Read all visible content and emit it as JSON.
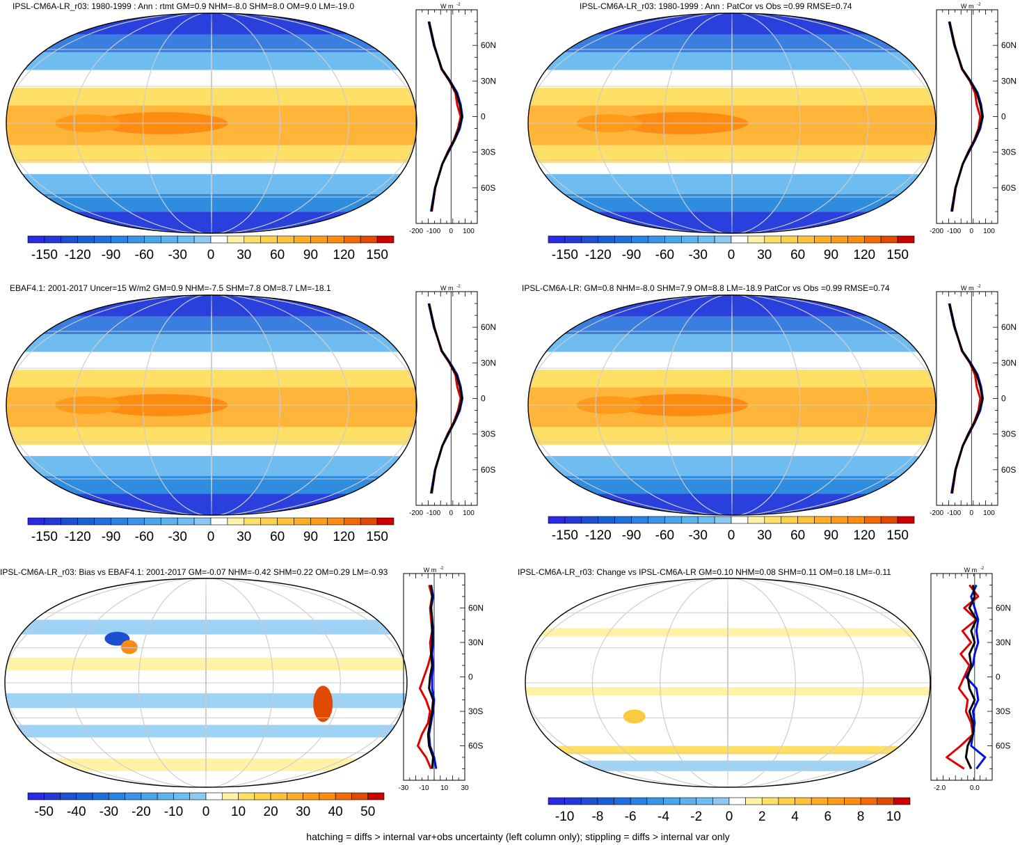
{
  "footer": "hatching = diffs > internal var+obs uncertainty (left column only); stippling = diffs > internal var only",
  "colors": {
    "warm": [
      "#fff2a6",
      "#ffe066",
      "#ffc93d",
      "#ffad26",
      "#ff8c12",
      "#f26a06",
      "#e04a03",
      "#c92a00",
      "#cc0000"
    ],
    "cool": [
      "#9fd3f5",
      "#6fbdf0",
      "#4aa6ea",
      "#2f8de0",
      "#1d6fd8",
      "#1050d0",
      "#2a2ae0"
    ]
  },
  "chart_data": [
    {
      "type": "heatmap",
      "title": "IPSL-CM6A-LR_r03: 1980-1999 : Ann : rtmt GM=0.9 NHM=-8.0 SHM=8.0 OM=9.0 LM=-19.0",
      "colorbar_ticks": [
        "-150",
        "-120",
        "-90",
        "-60",
        "-30",
        "0",
        "30",
        "60",
        "90",
        "120",
        "150"
      ],
      "colorbar_range": [
        -165,
        165
      ],
      "profile_unit": "W m",
      "profile_unit_sup": "-2",
      "profile_xticks": [
        "-200",
        "-100",
        "0",
        "100"
      ],
      "profile_xrange": [
        -200,
        150
      ],
      "profile_yticks": [
        "60N",
        "30N",
        "0",
        "30S",
        "60S"
      ],
      "profile_series": [
        {
          "color": "#e00000",
          "lat": [
            80,
            60,
            40,
            30,
            20,
            10,
            0,
            -10,
            -20,
            -30,
            -40,
            -60,
            -80
          ],
          "val": [
            -125,
            -95,
            -55,
            -10,
            25,
            35,
            55,
            40,
            15,
            -20,
            -50,
            -90,
            -110
          ]
        },
        {
          "color": "#0010e0",
          "lat": [
            80,
            60,
            40,
            30,
            20,
            10,
            0,
            -10,
            -20,
            -30,
            -40,
            -60,
            -80
          ],
          "val": [
            -128,
            -98,
            -52,
            -5,
            35,
            55,
            65,
            50,
            20,
            -15,
            -50,
            -92,
            -115
          ]
        },
        {
          "color": "#000000",
          "lat": [
            80,
            60,
            40,
            30,
            20,
            10,
            0,
            -10,
            -20,
            -30,
            -40,
            -60,
            -80
          ],
          "val": [
            -126,
            -96,
            -53,
            -8,
            30,
            50,
            62,
            45,
            18,
            -18,
            -50,
            -91,
            -112
          ]
        }
      ]
    },
    {
      "type": "heatmap",
      "title": "IPSL-CM6A-LR_r03: 1980-1999 : Ann : PatCor vs Obs =0.99 RMSE=0.74",
      "colorbar_ticks": [
        "-150",
        "-120",
        "-90",
        "-60",
        "-30",
        "0",
        "30",
        "60",
        "90",
        "120",
        "150"
      ],
      "colorbar_range": [
        -165,
        165
      ],
      "profile_unit": "W m",
      "profile_unit_sup": "-2",
      "profile_xticks": [
        "-200",
        "-100",
        "0",
        "100"
      ],
      "profile_xrange": [
        -200,
        150
      ],
      "profile_yticks": [
        "60N",
        "30N",
        "0",
        "30S",
        "60S"
      ],
      "profile_series": [
        {
          "color": "#0010e0",
          "lat": [
            80,
            60,
            40,
            30,
            20,
            10,
            0,
            -10,
            -20,
            -30,
            -40,
            -60,
            -80
          ],
          "val": [
            -128,
            -98,
            -52,
            -5,
            35,
            55,
            65,
            50,
            20,
            -15,
            -50,
            -92,
            -115
          ]
        },
        {
          "color": "#e00000",
          "lat": [
            80,
            60,
            40,
            30,
            20,
            10,
            0,
            -10,
            -20,
            -30,
            -40,
            -60,
            -80
          ],
          "val": [
            -125,
            -95,
            -55,
            -10,
            20,
            30,
            50,
            40,
            15,
            -20,
            -50,
            -90,
            -110
          ]
        },
        {
          "color": "#000000",
          "lat": [
            80,
            60,
            40,
            30,
            20,
            10,
            0,
            -10,
            -20,
            -30,
            -40,
            -60,
            -80
          ],
          "val": [
            -126,
            -96,
            -53,
            -8,
            30,
            50,
            62,
            45,
            18,
            -18,
            -50,
            -91,
            -112
          ]
        }
      ]
    },
    {
      "type": "heatmap",
      "title": "EBAF4.1: 2001-2017 Uncer=15 W/m2 GM=0.9 NHM=-7.5 SHM=7.8 OM=8.7 LM=-18.1",
      "colorbar_ticks": [
        "-150",
        "-120",
        "-90",
        "-60",
        "-30",
        "0",
        "30",
        "60",
        "90",
        "120",
        "150"
      ],
      "colorbar_range": [
        -165,
        165
      ],
      "profile_unit": "W m",
      "profile_unit_sup": "-2",
      "profile_xticks": [
        "-200",
        "-100",
        "0",
        "100"
      ],
      "profile_xrange": [
        -200,
        150
      ],
      "profile_yticks": [
        "60N",
        "30N",
        "0",
        "30S",
        "60S"
      ],
      "profile_series": [
        {
          "color": "#0010e0",
          "lat": [
            80,
            60,
            40,
            30,
            20,
            10,
            0,
            -10,
            -20,
            -30,
            -40,
            -60,
            -80
          ],
          "val": [
            -128,
            -98,
            -52,
            -5,
            35,
            55,
            65,
            50,
            20,
            -15,
            -50,
            -92,
            -115
          ]
        },
        {
          "color": "#e00000",
          "lat": [
            80,
            60,
            40,
            30,
            20,
            10,
            0,
            -10,
            -20,
            -30,
            -40,
            -60,
            -80
          ],
          "val": [
            -125,
            -95,
            -55,
            -10,
            25,
            35,
            55,
            40,
            15,
            -20,
            -50,
            -90,
            -110
          ]
        },
        {
          "color": "#000000",
          "lat": [
            80,
            60,
            40,
            30,
            20,
            10,
            0,
            -10,
            -20,
            -30,
            -40,
            -60,
            -80
          ],
          "val": [
            -126,
            -96,
            -53,
            -8,
            30,
            50,
            62,
            45,
            18,
            -18,
            -50,
            -91,
            -112
          ]
        }
      ]
    },
    {
      "type": "heatmap",
      "title": "IPSL-CM6A-LR: GM=0.8 NHM=-8.0 SHM=7.9 OM=8.8 LM=-18.9 PatCor vs Obs =0.99 RMSE=0.74",
      "colorbar_ticks": [
        "-150",
        "-120",
        "-90",
        "-60",
        "-30",
        "0",
        "30",
        "60",
        "90",
        "120",
        "150"
      ],
      "colorbar_range": [
        -165,
        165
      ],
      "profile_unit": "W m",
      "profile_unit_sup": "-2",
      "profile_xticks": [
        "-200",
        "-100",
        "0",
        "100"
      ],
      "profile_xrange": [
        -200,
        150
      ],
      "profile_yticks": [
        "60N",
        "30N",
        "0",
        "30S",
        "60S"
      ],
      "profile_series": [
        {
          "color": "#0010e0",
          "lat": [
            80,
            60,
            40,
            30,
            20,
            10,
            0,
            -10,
            -20,
            -30,
            -40,
            -60,
            -80
          ],
          "val": [
            -128,
            -98,
            -52,
            -5,
            35,
            55,
            65,
            50,
            20,
            -15,
            -50,
            -92,
            -115
          ]
        },
        {
          "color": "#e00000",
          "lat": [
            80,
            60,
            40,
            30,
            20,
            10,
            0,
            -10,
            -20,
            -30,
            -40,
            -60,
            -80
          ],
          "val": [
            -125,
            -95,
            -55,
            -10,
            20,
            30,
            50,
            40,
            15,
            -20,
            -50,
            -90,
            -110
          ]
        },
        {
          "color": "#000000",
          "lat": [
            80,
            60,
            40,
            30,
            20,
            10,
            0,
            -10,
            -20,
            -30,
            -40,
            -60,
            -80
          ],
          "val": [
            -126,
            -96,
            -53,
            -8,
            30,
            50,
            62,
            45,
            18,
            -18,
            -50,
            -91,
            -112
          ]
        }
      ]
    },
    {
      "type": "heatmap",
      "title": "IPSL-CM6A-LR_r03: Bias vs EBAF4.1: 2001-2017 GM=-0.07 NHM=-0.42 SHM=0.22 OM=0.29 LM=-0.93",
      "colorbar_ticks": [
        "-50",
        "-40",
        "-30",
        "-20",
        "-10",
        "0",
        "10",
        "20",
        "30",
        "40",
        "50"
      ],
      "colorbar_range": [
        -55,
        55
      ],
      "profile_unit": "W m",
      "profile_unit_sup": "-2",
      "profile_xticks": [
        "-30",
        "-10",
        "10",
        "30"
      ],
      "profile_xrange": [
        -30,
        30
      ],
      "profile_yticks": [
        "60N",
        "30N",
        "0",
        "30S",
        "60S"
      ],
      "profile_series": [
        {
          "color": "#e00000",
          "lat": [
            80,
            70,
            60,
            50,
            40,
            30,
            20,
            10,
            0,
            -10,
            -20,
            -30,
            -40,
            -50,
            -60,
            -70,
            -80
          ],
          "val": [
            -5,
            -2,
            -4,
            -3,
            -2,
            -4,
            -3,
            -6,
            -10,
            -14,
            -8,
            -4,
            -6,
            -12,
            -16,
            -8,
            -3
          ]
        },
        {
          "color": "#0010e0",
          "lat": [
            80,
            70,
            60,
            50,
            40,
            30,
            20,
            10,
            0,
            -10,
            -20,
            -30,
            -40,
            -50,
            -60,
            -70,
            -80
          ],
          "val": [
            -3,
            -1,
            -3,
            -2,
            -1,
            -1,
            -2,
            -1,
            -2,
            -2,
            0,
            -1,
            -3,
            -5,
            -4,
            0,
            2
          ]
        },
        {
          "color": "#000000",
          "lat": [
            80,
            70,
            60,
            50,
            40,
            30,
            20,
            10,
            0,
            -10,
            -20,
            -30,
            -40,
            -50,
            -60,
            -70,
            -80
          ],
          "val": [
            -3,
            -2,
            -3,
            -2,
            -2,
            -2,
            -3,
            -2,
            -4,
            -5,
            -1,
            -2,
            -4,
            -6,
            -5,
            -1,
            -2
          ]
        }
      ]
    },
    {
      "type": "heatmap",
      "title": "IPSL-CM6A-LR_r03: Change vs IPSL-CM6A-LR GM=0.10 NHM=0.08 SHM=0.11 OM=0.18 LM=-0.11",
      "colorbar_ticks": [
        "-10",
        "-8",
        "-6",
        "-4",
        "-2",
        "0",
        "2",
        "4",
        "6",
        "8",
        "10"
      ],
      "colorbar_range": [
        -11,
        11
      ],
      "profile_unit": "W m",
      "profile_unit_sup": "-2",
      "profile_xticks": [
        "-2.0",
        "0.0"
      ],
      "profile_xrange": [
        -2.5,
        1.0
      ],
      "profile_yticks": [
        "60N",
        "30N",
        "0",
        "30S",
        "60S"
      ],
      "profile_series": [
        {
          "color": "#e00000",
          "lat": [
            80,
            70,
            60,
            50,
            40,
            30,
            20,
            10,
            0,
            -10,
            -20,
            -30,
            -40,
            -50,
            -60,
            -70,
            -80
          ],
          "val": [
            -0.3,
            0.2,
            -0.6,
            0.1,
            -0.7,
            -0.2,
            -0.8,
            -0.3,
            -0.6,
            -0.9,
            -0.4,
            -0.5,
            -0.2,
            -0.1,
            -0.8,
            -1.6,
            -0.6
          ]
        },
        {
          "color": "#0010e0",
          "lat": [
            80,
            70,
            60,
            50,
            40,
            30,
            20,
            10,
            0,
            -10,
            -20,
            -30,
            -40,
            -50,
            -60,
            -70,
            -80
          ],
          "val": [
            0.1,
            -0.2,
            0.0,
            0.2,
            0.1,
            0.2,
            0.0,
            -0.1,
            -0.5,
            0.1,
            0.2,
            -0.1,
            0.0,
            -0.1,
            -0.2,
            0.6,
            0.1
          ]
        },
        {
          "color": "#000000",
          "lat": [
            80,
            70,
            60,
            50,
            40,
            30,
            20,
            10,
            0,
            -10,
            -20,
            -30,
            -40,
            -50,
            -60,
            -70,
            -80
          ],
          "val": [
            -0.1,
            0.0,
            -0.3,
            0.1,
            -0.2,
            0.0,
            -0.3,
            -0.2,
            -0.4,
            -0.3,
            0.0,
            -0.3,
            -0.1,
            -0.1,
            -0.4,
            -0.5,
            -0.2
          ]
        }
      ]
    }
  ]
}
